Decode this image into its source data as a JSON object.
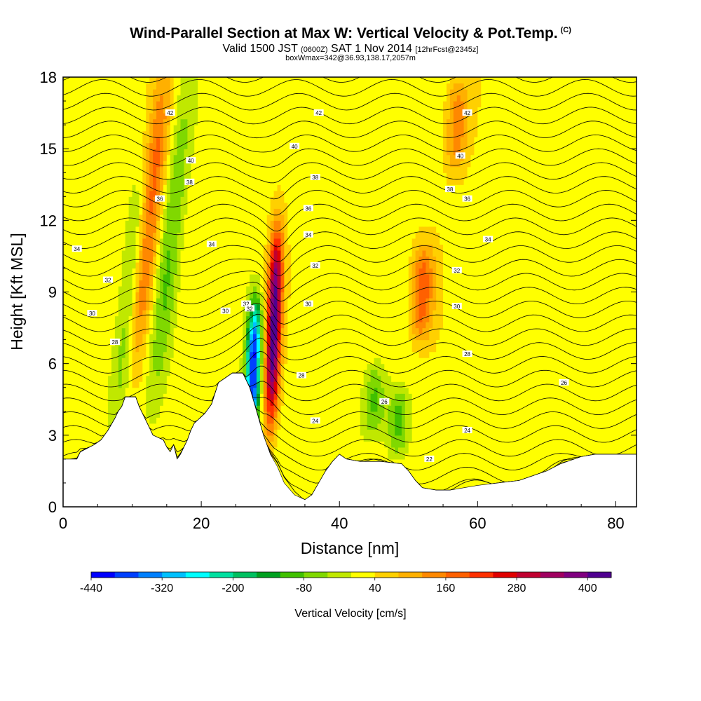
{
  "header": {
    "title": "Wind-Parallel Section at Max W: Vertical Velocity & Pot.Temp.",
    "title_mark": "(C)",
    "valid_prefix": "Valid 1500 JST",
    "valid_utc": "(0600Z)",
    "valid_date": "SAT 1 Nov 2014",
    "forecast": "[12hrFcst@2345z]",
    "boxwmax": "boxWmax=342@36.93,138.17,2057m"
  },
  "chart_data": {
    "type": "heatmap",
    "xlabel": "Distance [nm]",
    "ylabel": "Height [Kft MSL]",
    "xlim": [
      0,
      83
    ],
    "ylim": [
      0,
      18
    ],
    "xticks": [
      0,
      20,
      40,
      60,
      80
    ],
    "yticks": [
      0,
      3,
      6,
      9,
      12,
      15,
      18
    ],
    "colorbar": {
      "title": "Vertical Velocity [cm/s]",
      "labels": [
        "-440",
        "-320",
        "-200",
        "-80",
        "40",
        "160",
        "280",
        "400"
      ],
      "colors": [
        "#0000ff",
        "#0040ff",
        "#0080ff",
        "#00c0ff",
        "#00ffff",
        "#00e0a0",
        "#00c060",
        "#00a020",
        "#40c000",
        "#80d800",
        "#c0e800",
        "#ffff00",
        "#ffd000",
        "#ffb000",
        "#ff8800",
        "#ff6000",
        "#ff3000",
        "#e00000",
        "#c00030",
        "#a00060",
        "#800080",
        "#500090"
      ]
    },
    "terrain_kft": [
      [
        0,
        2
      ],
      [
        2,
        2
      ],
      [
        2.5,
        2.3
      ],
      [
        4.5,
        2.6
      ],
      [
        5.5,
        2.8
      ],
      [
        6.5,
        3.2
      ],
      [
        7.5,
        3.7
      ],
      [
        8,
        4.0
      ],
      [
        8.5,
        4.2
      ],
      [
        9,
        4.6
      ],
      [
        10.5,
        4.6
      ],
      [
        11,
        4.2
      ],
      [
        12,
        3.6
      ],
      [
        13,
        3.0
      ],
      [
        14.5,
        2.8
      ],
      [
        15,
        2.5
      ],
      [
        15.5,
        2.3
      ],
      [
        16,
        2.6
      ],
      [
        16.5,
        2.0
      ],
      [
        17,
        2.2
      ],
      [
        18,
        2.8
      ],
      [
        18.5,
        3.2
      ],
      [
        19,
        3.5
      ],
      [
        20.5,
        3.9
      ],
      [
        21.5,
        4.3
      ],
      [
        22.5,
        5.2
      ],
      [
        24.5,
        5.6
      ],
      [
        26,
        5.6
      ],
      [
        27,
        5.0
      ],
      [
        28,
        4.0
      ],
      [
        29,
        3.0
      ],
      [
        30,
        2.2
      ],
      [
        31,
        1.7
      ],
      [
        32,
        1.0
      ],
      [
        33.5,
        0.5
      ],
      [
        35,
        0.3
      ],
      [
        36,
        0.5
      ],
      [
        37,
        1.0
      ],
      [
        38,
        1.5
      ],
      [
        39,
        1.9
      ],
      [
        40,
        2.2
      ],
      [
        41,
        2.0
      ],
      [
        43,
        1.9
      ],
      [
        46,
        1.9
      ],
      [
        49,
        1.8
      ],
      [
        50,
        1.5
      ],
      [
        51,
        1.1
      ],
      [
        52,
        0.8
      ],
      [
        54,
        0.7
      ],
      [
        56,
        0.7
      ],
      [
        60,
        0.9
      ],
      [
        63,
        1.0
      ],
      [
        66,
        1.1
      ],
      [
        68,
        1.3
      ],
      [
        70,
        1.5
      ],
      [
        72,
        1.8
      ],
      [
        75,
        2.1
      ],
      [
        77,
        2.2
      ],
      [
        83,
        2.2
      ]
    ],
    "series": [
      {
        "name": "Vertical Velocity",
        "units": "cm/s"
      },
      {
        "name": "Pot.Temp.",
        "units": "C"
      }
    ],
    "features": [
      {
        "type": "updraft",
        "x": 30.5,
        "y_range": [
          3.5,
          11.5
        ],
        "peak": 400
      },
      {
        "type": "downdraft",
        "x": 27.5,
        "y_range": [
          3.0,
          8.5
        ],
        "peak": -440
      },
      {
        "type": "updraft",
        "x": 12.5,
        "y_range": [
          6,
          18
        ],
        "peak": 160
      },
      {
        "type": "updraft",
        "x": 52,
        "y_range": [
          7,
          11
        ],
        "peak": 160
      },
      {
        "type": "updraft",
        "x": 57,
        "y_range": [
          14,
          18
        ],
        "peak": 120
      },
      {
        "type": "downdraft",
        "x": 9.5,
        "y_range": [
          3,
          14
        ],
        "peak": -100
      },
      {
        "type": "downdraft",
        "x": 15.5,
        "y_range": [
          4,
          18
        ],
        "peak": -100
      },
      {
        "type": "downdraft",
        "x": 45,
        "y_range": [
          3,
          6
        ],
        "peak": -110
      },
      {
        "type": "downdraft",
        "x": 48.5,
        "y_range": [
          2,
          5
        ],
        "peak": -120
      }
    ],
    "contours": [
      {
        "label": "34",
        "x": 2,
        "y": 10.8
      },
      {
        "label": "32",
        "x": 6.5,
        "y": 9.5
      },
      {
        "label": "30",
        "x": 4.2,
        "y": 8.1
      },
      {
        "label": "28",
        "x": 7.5,
        "y": 6.9
      },
      {
        "label": "42",
        "x": 15.5,
        "y": 16.5
      },
      {
        "label": "40",
        "x": 18.5,
        "y": 14.5
      },
      {
        "label": "38",
        "x": 18.3,
        "y": 13.6
      },
      {
        "label": "36",
        "x": 14,
        "y": 12.9
      },
      {
        "label": "34",
        "x": 21.5,
        "y": 11.0
      },
      {
        "label": "30",
        "x": 23.5,
        "y": 8.2
      },
      {
        "label": "32",
        "x": 26.5,
        "y": 8.5
      },
      {
        "label": "32",
        "x": 27,
        "y": 8.3
      },
      {
        "label": "42",
        "x": 37,
        "y": 16.5
      },
      {
        "label": "40",
        "x": 33.5,
        "y": 15.1
      },
      {
        "label": "38",
        "x": 36.5,
        "y": 13.8
      },
      {
        "label": "36",
        "x": 35.5,
        "y": 12.5
      },
      {
        "label": "34",
        "x": 35.5,
        "y": 11.4
      },
      {
        "label": "32",
        "x": 36.5,
        "y": 10.1
      },
      {
        "label": "30",
        "x": 35.5,
        "y": 8.5
      },
      {
        "label": "28",
        "x": 34.5,
        "y": 5.5
      },
      {
        "label": "26",
        "x": 46.5,
        "y": 4.4
      },
      {
        "label": "24",
        "x": 36.5,
        "y": 3.6
      },
      {
        "label": "42",
        "x": 58.5,
        "y": 16.5
      },
      {
        "label": "40",
        "x": 57.5,
        "y": 14.7
      },
      {
        "label": "38",
        "x": 56,
        "y": 13.3
      },
      {
        "label": "36",
        "x": 58.5,
        "y": 12.9
      },
      {
        "label": "34",
        "x": 61.5,
        "y": 11.2
      },
      {
        "label": "32",
        "x": 57,
        "y": 9.9
      },
      {
        "label": "30",
        "x": 57,
        "y": 8.4
      },
      {
        "label": "28",
        "x": 58.5,
        "y": 6.4
      },
      {
        "label": "26",
        "x": 72.5,
        "y": 5.2
      },
      {
        "label": "24",
        "x": 58.5,
        "y": 3.2
      },
      {
        "label": "22",
        "x": 53,
        "y": 2.0
      }
    ]
  }
}
